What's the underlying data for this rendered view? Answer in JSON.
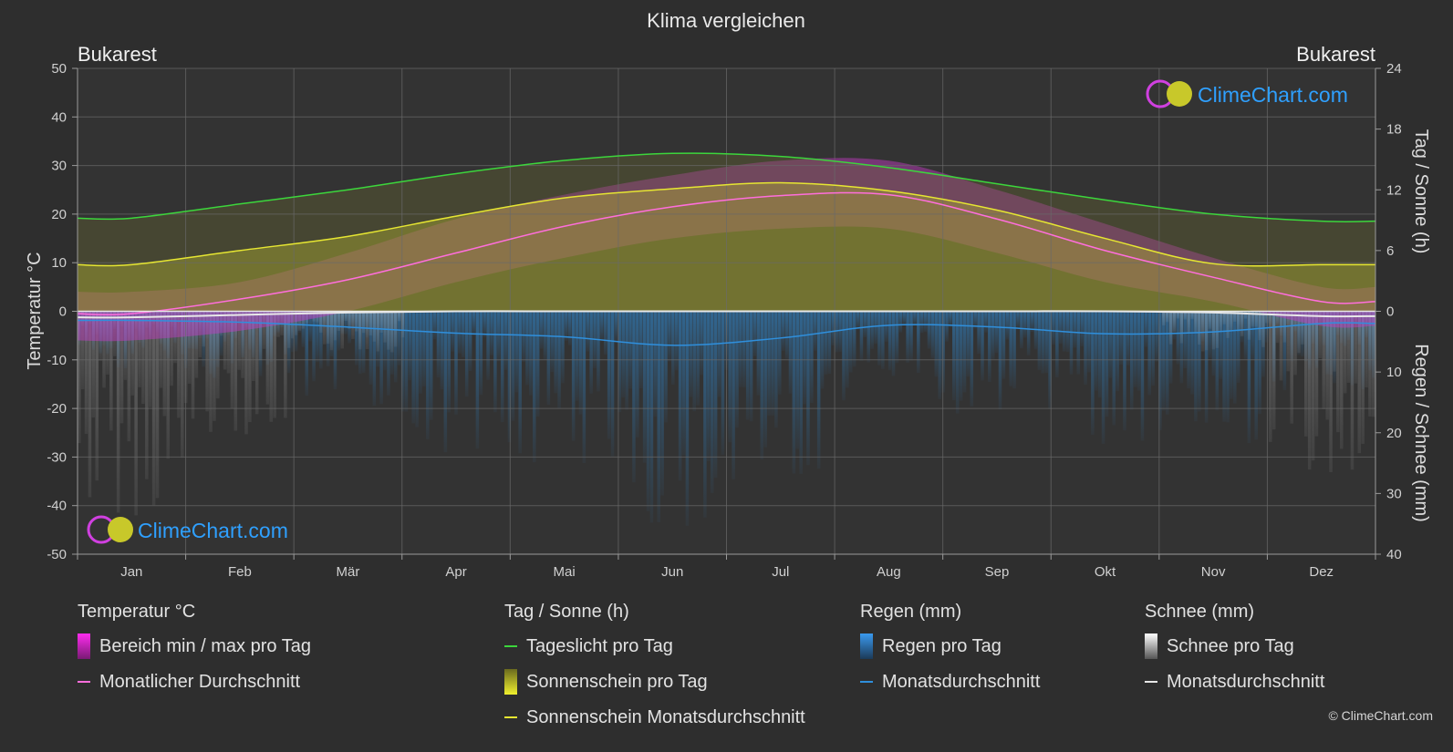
{
  "chart_data": {
    "type": "area",
    "title": "Klima vergleichen",
    "location_left": "Bukarest",
    "location_right": "Bukarest",
    "watermark": "ClimeChart.com",
    "copyright": "© ClimeChart.com",
    "categories": [
      "Jan",
      "Feb",
      "Mär",
      "Apr",
      "Mai",
      "Jun",
      "Jul",
      "Aug",
      "Sep",
      "Okt",
      "Nov",
      "Dez"
    ],
    "y_left": {
      "label": "Temperatur °C",
      "range": [
        -50,
        50
      ],
      "ticks": [
        50,
        40,
        30,
        20,
        10,
        0,
        -10,
        -20,
        -30,
        -40,
        -50
      ]
    },
    "y_right_top": {
      "label": "Tag / Sonne (h)",
      "range": [
        0,
        24
      ],
      "ticks": [
        24,
        18,
        12,
        6,
        0
      ]
    },
    "y_right_bottom": {
      "label": "Regen / Schnee (mm)",
      "range": [
        0,
        40
      ],
      "ticks": [
        0,
        10,
        20,
        30,
        40
      ]
    },
    "series": [
      {
        "name": "Tageslicht pro Tag",
        "axis": "sun_h",
        "color": "#3cd63c",
        "values": [
          9.2,
          10.6,
          12.0,
          13.6,
          14.9,
          15.6,
          15.3,
          14.2,
          12.6,
          11.0,
          9.6,
          8.9
        ]
      },
      {
        "name": "Sonnenschein Monatsdurchschnitt",
        "axis": "sun_h",
        "color": "#e6e632",
        "values": [
          4.6,
          6.0,
          7.4,
          9.4,
          11.2,
          12.1,
          12.7,
          11.9,
          10.0,
          7.2,
          4.7,
          4.6
        ]
      },
      {
        "name": "Monatlicher Durchschnitt",
        "axis": "temp_c",
        "color": "#ff6edc",
        "values": [
          -0.5,
          2.5,
          6.5,
          12.0,
          17.5,
          21.5,
          23.8,
          24.0,
          19.0,
          12.5,
          7.0,
          2.0
        ]
      },
      {
        "name": "Bereich min / max pro Tag",
        "axis": "temp_c",
        "type": "range",
        "min": [
          -6,
          -4,
          0,
          6,
          11,
          15,
          17,
          17,
          12,
          6,
          2,
          -3
        ],
        "max": [
          4,
          6,
          12,
          19,
          24,
          28,
          31,
          31,
          25,
          18,
          11,
          5
        ]
      },
      {
        "name": "Regen Monatsdurchschnitt",
        "axis": "rain_mm",
        "color": "#2f8fdc",
        "values": [
          1.5,
          1.8,
          2.6,
          3.6,
          4.2,
          5.6,
          4.4,
          2.3,
          2.6,
          3.7,
          3.4,
          2.0
        ]
      },
      {
        "name": "Schnee Monatsdurchschnitt",
        "axis": "rain_mm",
        "color": "#e8e8e8",
        "values": [
          1.0,
          0.6,
          0.2,
          0,
          0,
          0,
          0,
          0,
          0,
          0,
          0.2,
          0.8
        ]
      }
    ]
  },
  "legend": {
    "groups": [
      {
        "title": "Temperatur °C",
        "items": [
          {
            "label": "Bereich min / max pro Tag",
            "kind": "box",
            "color": "#e040d8"
          },
          {
            "label": "Monatlicher Durchschnitt",
            "kind": "line",
            "color": "#ff6edc"
          }
        ]
      },
      {
        "title": "Tag / Sonne (h)",
        "items": [
          {
            "label": "Tageslicht pro Tag",
            "kind": "line",
            "color": "#3cd63c"
          },
          {
            "label": "Sonnenschein pro Tag",
            "kind": "box",
            "color": "#d6d62e"
          },
          {
            "label": "Sonnenschein Monatsdurchschnitt",
            "kind": "line",
            "color": "#e6e632"
          }
        ]
      },
      {
        "title": "Regen (mm)",
        "items": [
          {
            "label": "Regen pro Tag",
            "kind": "box",
            "color": "#2f8fdc"
          },
          {
            "label": "Monatsdurchschnitt",
            "kind": "line",
            "color": "#2f8fdc"
          }
        ]
      },
      {
        "title": "Schnee (mm)",
        "items": [
          {
            "label": "Schnee pro Tag",
            "kind": "box",
            "color": "#e8e8e8"
          },
          {
            "label": "Monatsdurchschnitt",
            "kind": "line",
            "color": "#e8e8e8"
          }
        ]
      }
    ]
  }
}
